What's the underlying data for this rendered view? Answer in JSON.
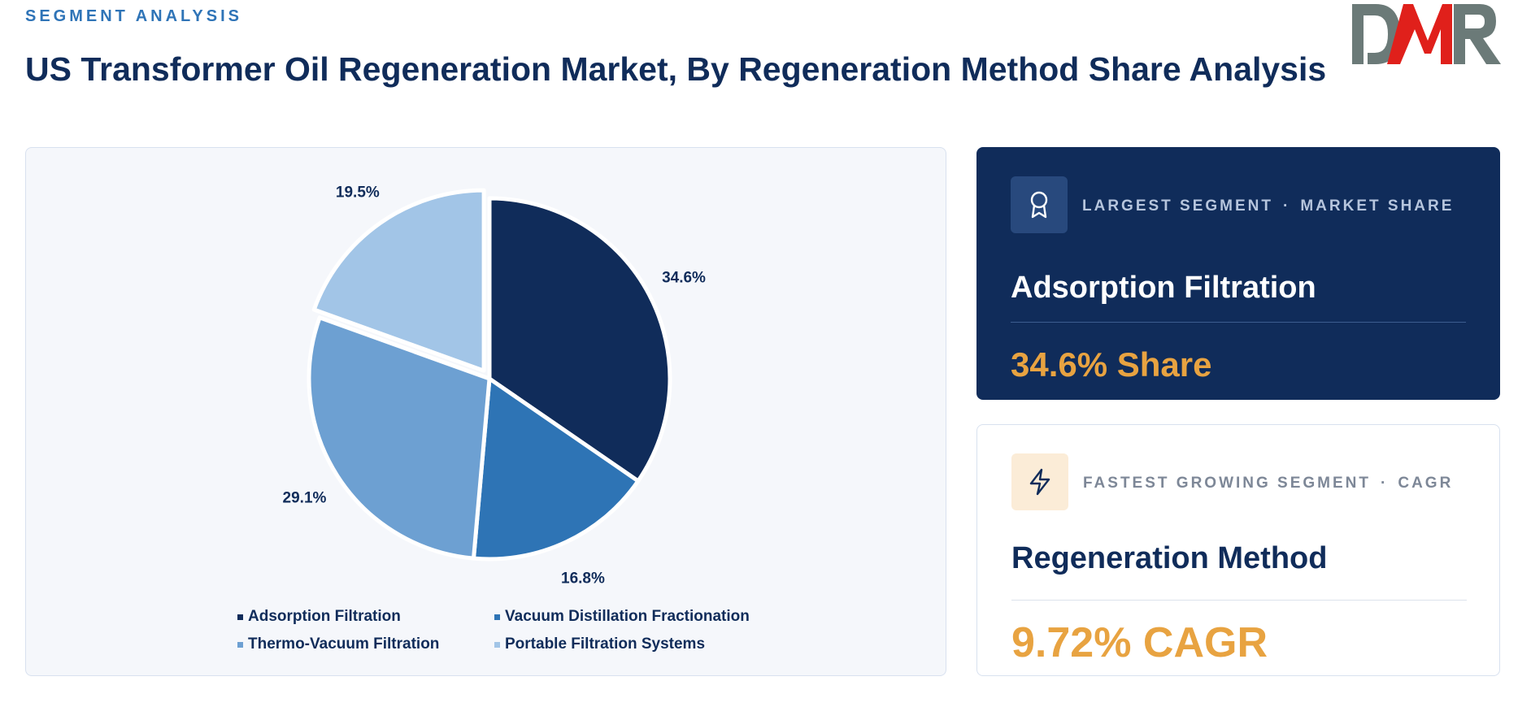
{
  "header": {
    "eyebrow": "SEGMENT ANALYSIS",
    "title": "US Transformer Oil Regeneration Market, By Regeneration Method Share Analysis"
  },
  "logo": {
    "text": "DMR",
    "colors": {
      "D": "#6b7a78",
      "M": "#e0201b",
      "R": "#6b7a78"
    }
  },
  "chart_data": {
    "type": "pie",
    "title": "",
    "value_format": "percent",
    "slices": [
      {
        "label": "Adsorption Filtration",
        "value": 34.6,
        "display": "34.6%",
        "color": "#102c5a",
        "exploded": false
      },
      {
        "label": "Vacuum Distillation Fractionation",
        "value": 16.8,
        "display": "16.8%",
        "color": "#2e74b5",
        "exploded": false
      },
      {
        "label": "Thermo-Vacuum Filtration",
        "value": 29.1,
        "display": "29.1%",
        "color": "#6da0d2",
        "exploded": false
      },
      {
        "label": "Portable Filtration Systems",
        "value": 19.5,
        "display": "19.5%",
        "color": "#a2c5e7",
        "exploded": true
      }
    ],
    "legend": {
      "placement": "bottom",
      "entries": [
        "Adsorption Filtration",
        "Vacuum Distillation Fractionation",
        "Thermo-Vacuum Filtration",
        "Portable Filtration Systems"
      ]
    }
  },
  "cards": {
    "largest": {
      "icon": "award-icon",
      "label_left": "LARGEST SEGMENT",
      "separator": "·",
      "label_right": "MARKET SHARE",
      "name": "Adsorption Filtration",
      "value": "34.6% Share"
    },
    "fastest": {
      "icon": "lightning-icon",
      "label_left": "FASTEST GROWING SEGMENT",
      "separator": "·",
      "label_right": "CAGR",
      "name": "Regeneration Method",
      "value": "9.72% CAGR"
    }
  },
  "colors": {
    "navy": "#102c5a",
    "accent_orange": "#e8a341",
    "eyebrow_blue": "#2f74b7"
  }
}
